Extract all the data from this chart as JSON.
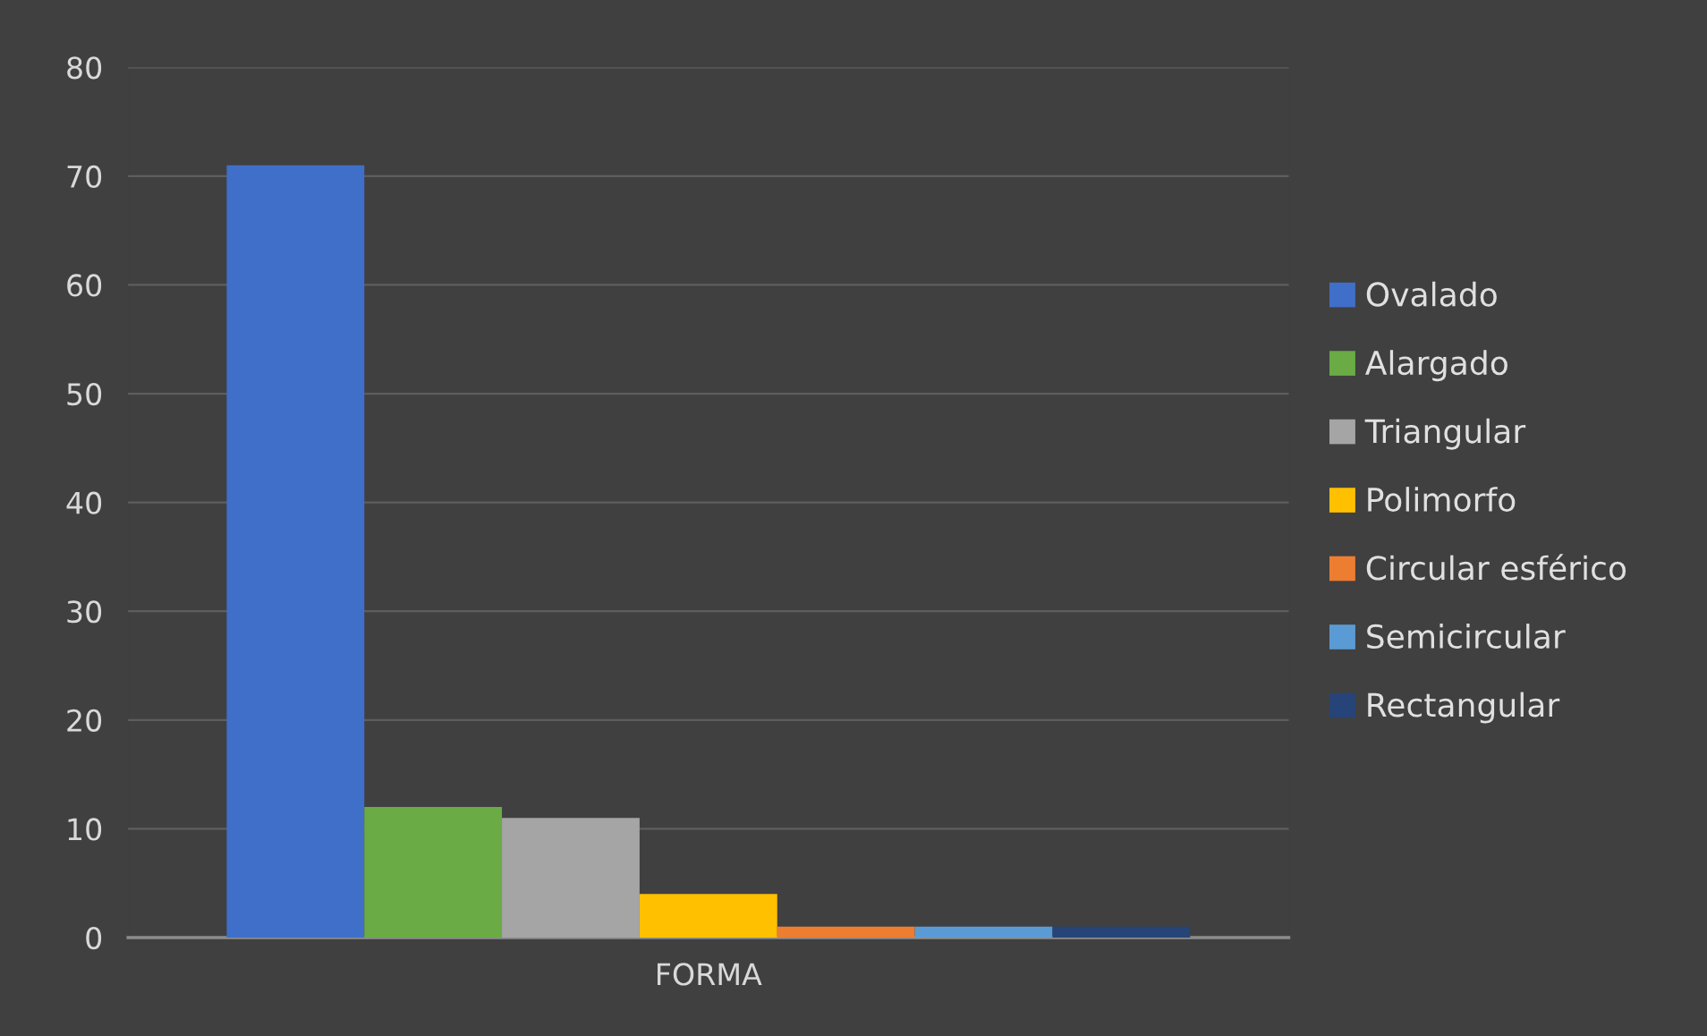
{
  "chart_data": {
    "type": "bar",
    "categories": [
      "FORMA"
    ],
    "series": [
      {
        "name": "Ovalado",
        "color": "#3f6fc8",
        "values": [
          71
        ]
      },
      {
        "name": "Alargado",
        "color": "#6aab45",
        "values": [
          12
        ]
      },
      {
        "name": "Triangular",
        "color": "#a5a5a5",
        "values": [
          11
        ]
      },
      {
        "name": "Polimorfo",
        "color": "#ffc000",
        "values": [
          4
        ]
      },
      {
        "name": "Circular esférico",
        "color": "#ed7d31",
        "values": [
          1
        ]
      },
      {
        "name": "Semicircular",
        "color": "#5b9bd5",
        "values": [
          1
        ]
      },
      {
        "name": "Rectangular",
        "color": "#264478",
        "values": [
          1
        ]
      }
    ],
    "ylim": [
      0,
      80
    ],
    "yticks": [
      0,
      10,
      20,
      30,
      40,
      50,
      60,
      70,
      80
    ],
    "grid": "y",
    "legend": "right"
  }
}
